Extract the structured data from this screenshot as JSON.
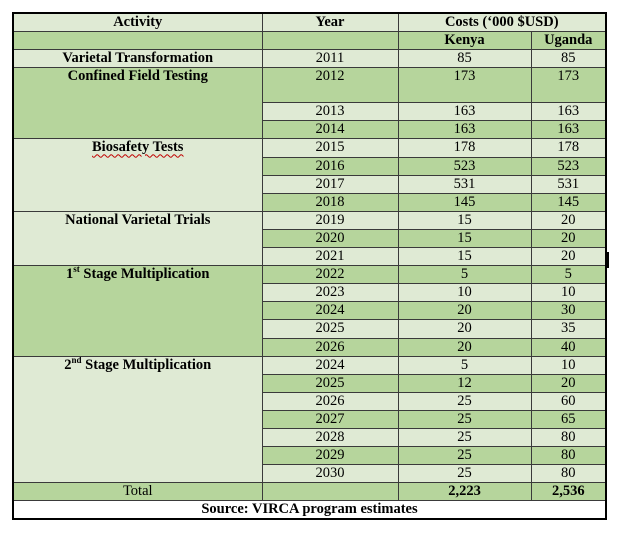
{
  "headers": {
    "activity": "Activity",
    "year": "Year",
    "costs": "Costs (‘000 $USD)",
    "kenya": "Kenya",
    "uganda": "Uganda"
  },
  "groups": [
    {
      "activity": "Varietal Transformation",
      "rows": [
        {
          "year": "2011",
          "kenya": "85",
          "uganda": "85"
        }
      ]
    },
    {
      "activity": "Confined Field Testing",
      "rows": [
        {
          "year": "2012",
          "kenya": "173",
          "uganda": "173"
        },
        {
          "year": "2013",
          "kenya": "163",
          "uganda": "163"
        },
        {
          "year": "2014",
          "kenya": "163",
          "uganda": "163"
        }
      ]
    },
    {
      "activity": "Biosafety Tests",
      "rows": [
        {
          "year": "2015",
          "kenya": "178",
          "uganda": "178"
        },
        {
          "year": "2016",
          "kenya": "523",
          "uganda": "523"
        },
        {
          "year": "2017",
          "kenya": "531",
          "uganda": "531"
        },
        {
          "year": "2018",
          "kenya": "145",
          "uganda": "145"
        }
      ]
    },
    {
      "activity": "National Varietal Trials",
      "rows": [
        {
          "year": "2019",
          "kenya": "15",
          "uganda": "20"
        },
        {
          "year": "2020",
          "kenya": "15",
          "uganda": "20"
        },
        {
          "year": "2021",
          "kenya": "15",
          "uganda": "20"
        }
      ]
    },
    {
      "activity_prefix": "1",
      "activity_sup": "st",
      "activity_rest": " Stage Multiplication",
      "rows": [
        {
          "year": "2022",
          "kenya": "5",
          "uganda": "5"
        },
        {
          "year": "2023",
          "kenya": "10",
          "uganda": "10"
        },
        {
          "year": "2024",
          "kenya": "20",
          "uganda": "30"
        },
        {
          "year": "2025",
          "kenya": "20",
          "uganda": "35"
        },
        {
          "year": "2026",
          "kenya": "20",
          "uganda": "40"
        }
      ]
    },
    {
      "activity_prefix": "2",
      "activity_sup": "nd",
      "activity_rest": " Stage Multiplication",
      "rows": [
        {
          "year": "2024",
          "kenya": "5",
          "uganda": "10"
        },
        {
          "year": "2025",
          "kenya": "12",
          "uganda": "20"
        },
        {
          "year": "2026",
          "kenya": "25",
          "uganda": "60"
        },
        {
          "year": "2027",
          "kenya": "25",
          "uganda": "65"
        },
        {
          "year": "2028",
          "kenya": "25",
          "uganda": "80"
        },
        {
          "year": "2029",
          "kenya": "25",
          "uganda": "80"
        },
        {
          "year": "2030",
          "kenya": "25",
          "uganda": "80"
        }
      ]
    }
  ],
  "total": {
    "label": "Total",
    "kenya": "2,223",
    "uganda": "2,536"
  },
  "source": "Source: VIRCA program estimates"
}
